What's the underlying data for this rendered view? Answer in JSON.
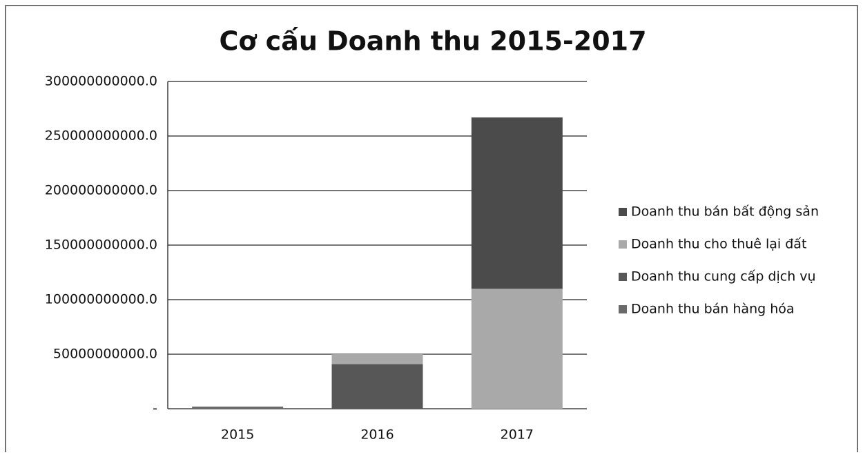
{
  "chart_data": {
    "type": "stacked_bar",
    "title": "Cơ cấu Doanh thu 2015-2017",
    "categories": [
      "2015",
      "2016",
      "2017"
    ],
    "series": [
      {
        "name": "Doanh thu bán hàng hóa",
        "color": "#6a6a6a",
        "values": [
          2000000000,
          0,
          0
        ]
      },
      {
        "name": "Doanh thu cung cấp dịch vụ",
        "color": "#575757",
        "values": [
          0,
          41000000000,
          0
        ]
      },
      {
        "name": "Doanh thu cho thuê lại đất",
        "color": "#a9a9a9",
        "values": [
          0,
          9000000000,
          110000000000
        ]
      },
      {
        "name": "Doanh thu bán bất động sản",
        "color": "#4b4b4b",
        "values": [
          0,
          0,
          157000000000
        ]
      }
    ],
    "ylim": [
      0,
      300000000000
    ],
    "yticks": [
      {
        "value": 0,
        "label": "-"
      },
      {
        "value": 50000000000,
        "label": "50000000000.0"
      },
      {
        "value": 100000000000,
        "label": "100000000000.0"
      },
      {
        "value": 150000000000,
        "label": "150000000000.0"
      },
      {
        "value": 200000000000,
        "label": "200000000000.0"
      },
      {
        "value": 250000000000,
        "label": "250000000000.0"
      },
      {
        "value": 300000000000,
        "label": "300000000000.0"
      }
    ],
    "grid": true,
    "legend": "right"
  }
}
